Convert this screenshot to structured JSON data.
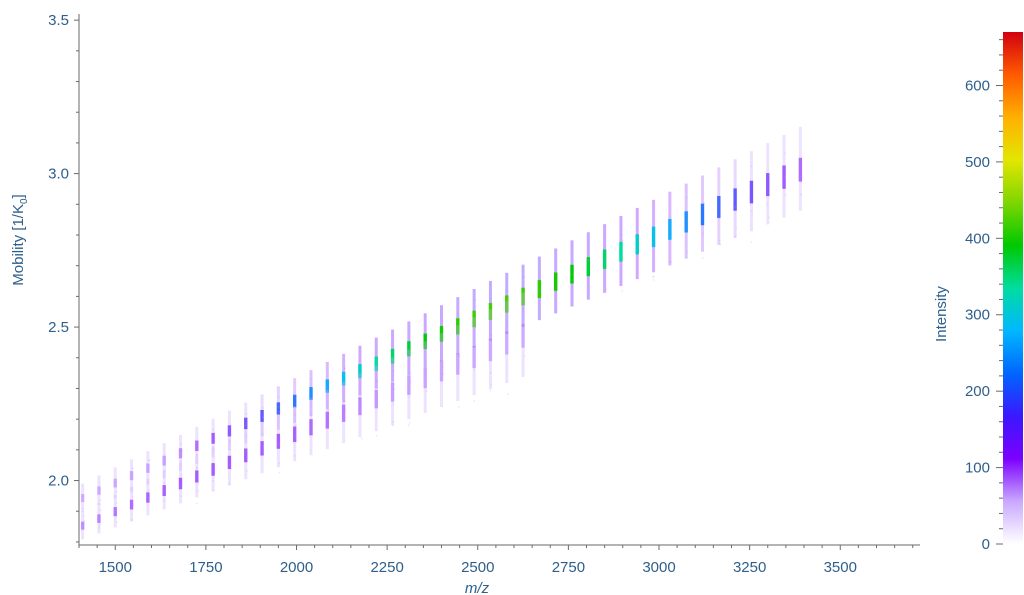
{
  "chart_data": {
    "type": "heatmap",
    "title": "",
    "xlabel": "m/z",
    "ylabel_main": "Mobility [1/K",
    "ylabel_sub": "0",
    "ylabel_end": "]",
    "xlim": [
      1400,
      3720
    ],
    "ylim": [
      1.79,
      3.52
    ],
    "x_ticks": [
      1500,
      1750,
      2000,
      2250,
      2500,
      2750,
      3000,
      3250,
      3500
    ],
    "y_ticks": [
      2.0,
      2.5,
      3.0,
      3.5
    ],
    "y_tick_labels": [
      "2.0",
      "2.5",
      "3.0",
      "3.5"
    ],
    "colorbar": {
      "label": "Intensity",
      "range": [
        0,
        670
      ],
      "ticks": [
        0,
        100,
        200,
        300,
        400,
        500,
        600
      ],
      "colors": [
        "#ffffff",
        "#c9a8ff",
        "#7b00ff",
        "#3a18ff",
        "#0066ff",
        "#00b8ff",
        "#00dca0",
        "#00c800",
        "#7ed600",
        "#e2e600",
        "#ffb000",
        "#ff5a00",
        "#d20010"
      ]
    },
    "trends": [
      {
        "name_shown": false,
        "x_start": 1410,
        "x_end": 3420,
        "y_at_start": 1.95,
        "y_at_end": 3.05,
        "spacing": 45,
        "peak_intensity": 420,
        "peak_x": 2560
      },
      {
        "name_shown": false,
        "x_start": 1410,
        "x_end": 2640,
        "y_at_start": 1.86,
        "y_at_end": 2.5,
        "spacing": 45,
        "peak_intensity": 120,
        "peak_x": 1800
      }
    ]
  }
}
